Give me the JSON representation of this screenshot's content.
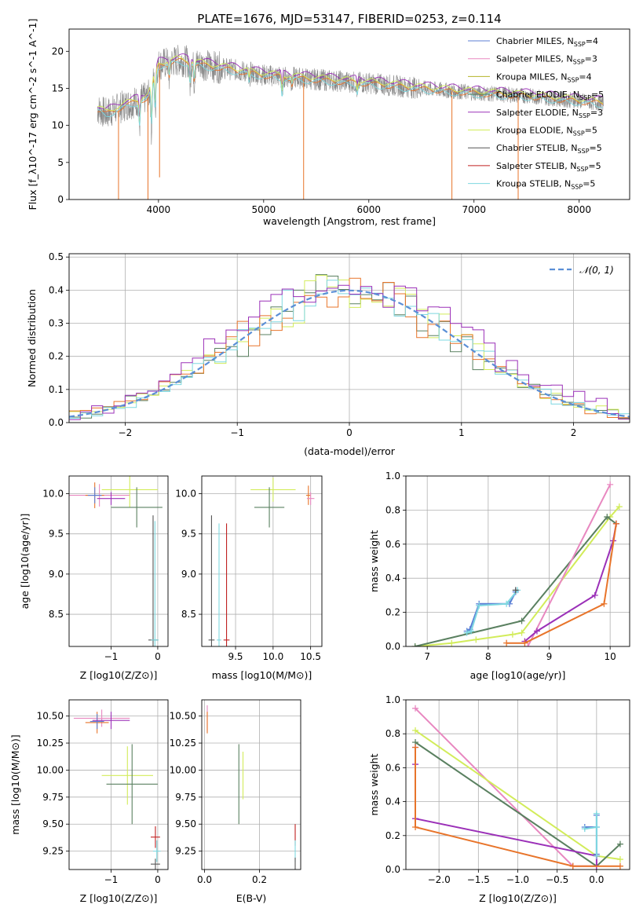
{
  "figure": {
    "suptitle": "PLATE=1676, MJD=53147, FIBERID=0253, z=0.114"
  },
  "colors": {
    "Chabrier MILES": "#5b7fd6",
    "Salpeter MILES": "#e888c0",
    "Kroupa MILES": "#b4b42a",
    "Chabrier ELODIE": "#5a8060",
    "Salpeter ELODIE": "#9b30b8",
    "Kroupa ELODIE": "#d2ec5a",
    "Chabrier STELIB": "#555555",
    "Salpeter STELIB": "#c02020",
    "Kroupa STELIB": "#7ed8e0",
    "data": "#888888",
    "orange": "#e8742a",
    "gauss": "#5b8fd6"
  },
  "chart_data": [
    {
      "id": "spectrum",
      "type": "line",
      "xlabel": "wavelength [Angstrom, rest frame]",
      "ylabel": "Flux [f_λ10^-17 erg cm^-2 s^-1 A^-1]",
      "xlim": [
        3150,
        8480
      ],
      "ylim": [
        0,
        23
      ],
      "xticks": [
        4000,
        5000,
        6000,
        7000,
        8000
      ],
      "yticks": [
        0,
        5,
        10,
        15,
        20
      ],
      "grid": false,
      "legend_position": "top-right",
      "continuum": {
        "x": [
          3420,
          3500,
          3700,
          3900,
          4000,
          4200,
          4500,
          4800,
          5000,
          5500,
          6000,
          6500,
          7000,
          7500,
          8000,
          8230
        ],
        "y": [
          12.2,
          11.6,
          12.8,
          13.8,
          18.2,
          18.8,
          18.0,
          17.3,
          16.8,
          16.2,
          15.7,
          15.0,
          14.4,
          14.0,
          13.3,
          13.0
        ]
      },
      "absorption_lines": [
        {
          "x": 3820,
          "depth": 3.5
        },
        {
          "x": 3934,
          "depth": 6
        },
        {
          "x": 3969,
          "depth": 5
        },
        {
          "x": 4102,
          "depth": 2
        },
        {
          "x": 4300,
          "depth": 3
        },
        {
          "x": 4340,
          "depth": 2.5
        },
        {
          "x": 4861,
          "depth": 1.5
        },
        {
          "x": 5175,
          "depth": 2.5
        },
        {
          "x": 5270,
          "depth": 1
        },
        {
          "x": 5890,
          "depth": 1.2
        }
      ],
      "spikes": [
        {
          "x": 3620,
          "to": 0
        },
        {
          "x": 3900,
          "to": 0
        },
        {
          "x": 4010,
          "to": 3
        },
        {
          "x": 5380,
          "to": 0
        },
        {
          "x": 6790,
          "to": 0
        },
        {
          "x": 7420,
          "to": 0
        }
      ],
      "legend": [
        {
          "label": "Chabrier MILES, N",
          "sub": "SSP",
          "suffix": "=4",
          "color_key": "Chabrier MILES"
        },
        {
          "label": "Salpeter MILES, N",
          "sub": "SSP",
          "suffix": "=3",
          "color_key": "Salpeter MILES"
        },
        {
          "label": "Kroupa MILES, N",
          "sub": "SSP",
          "suffix": "=4",
          "color_key": "Kroupa MILES"
        },
        {
          "label": "Chabrier ELODIE, N",
          "sub": "SSP",
          "suffix": "=5",
          "color_key": "Chabrier ELODIE"
        },
        {
          "label": "Salpeter ELODIE, N",
          "sub": "SSP",
          "suffix": "=3",
          "color_key": "Salpeter ELODIE"
        },
        {
          "label": "Kroupa ELODIE, N",
          "sub": "SSP",
          "suffix": "=5",
          "color_key": "Kroupa ELODIE"
        },
        {
          "label": "Chabrier STELIB, N",
          "sub": "SSP",
          "suffix": "=5",
          "color_key": "Chabrier STELIB"
        },
        {
          "label": "Salpeter STELIB, N",
          "sub": "SSP",
          "suffix": "=5",
          "color_key": "Salpeter STELIB"
        },
        {
          "label": "Kroupa STELIB, N",
          "sub": "SSP",
          "suffix": "=5",
          "color_key": "Kroupa STELIB"
        }
      ]
    },
    {
      "id": "residuals",
      "type": "line",
      "xlabel": "(data-model)/error",
      "ylabel": "Normed distribution",
      "xlim": [
        -2.5,
        2.5
      ],
      "ylim": [
        0,
        0.51
      ],
      "xticks": [
        -2,
        -1,
        0,
        1,
        2
      ],
      "yticks": [
        0.0,
        0.1,
        0.2,
        0.3,
        0.4,
        0.5
      ],
      "grid": true,
      "legend_position": "top-right",
      "legend_label": "𝒩(0, 1)",
      "bin_width": 0.1,
      "series": [
        {
          "color_key": "Chabrier ELODIE",
          "seed": 11
        },
        {
          "color_key": "Kroupa ELODIE",
          "seed": 23
        },
        {
          "color_key": "orange",
          "seed": 37
        },
        {
          "color_key": "Kroupa STELIB",
          "seed": 41
        },
        {
          "color_key": "Salpeter ELODIE",
          "seed": 53
        }
      ]
    },
    {
      "id": "age-vs-Z",
      "type": "scatter",
      "xlabel": "Z [log10(Z/Z⊙)]",
      "ylabel": "age  [log10(age/yr)]",
      "xlim": [
        -1.9,
        0.22
      ],
      "ylim": [
        8.1,
        10.22
      ],
      "xticks": [
        -1,
        0
      ],
      "yticks": [
        8.5,
        9.0,
        9.5,
        10.0
      ],
      "grid": true,
      "points": [
        {
          "x": -1.25,
          "y": 9.98,
          "xerr": 0.65,
          "yerr": 0.14,
          "color_key": "Salpeter MILES"
        },
        {
          "x": -1.35,
          "y": 9.98,
          "xerr": 0.2,
          "yerr": 0.16,
          "color_key": "orange"
        },
        {
          "x": -1.35,
          "y": 9.98,
          "xerr": 0.15,
          "yerr": 0.1,
          "color_key": "Chabrier MILES"
        },
        {
          "x": -1.0,
          "y": 9.94,
          "xerr": 0.3,
          "yerr": 0.08,
          "color_key": "Salpeter ELODIE"
        },
        {
          "x": -0.6,
          "y": 10.05,
          "xerr": 0.6,
          "yerr": 0.22,
          "color_key": "Kroupa ELODIE"
        },
        {
          "x": -0.45,
          "y": 9.83,
          "xerr": 0.55,
          "yerr": 0.25,
          "color_key": "Chabrier ELODIE"
        },
        {
          "x": -0.1,
          "y": 8.18,
          "xerr": 0.1,
          "yerr": 1.55,
          "color_key": "Chabrier STELIB"
        },
        {
          "x": -0.06,
          "y": 8.18,
          "xerr": 0.08,
          "yerr": 1.48,
          "color_key": "Kroupa STELIB"
        }
      ]
    },
    {
      "id": "age-vs-mass",
      "type": "scatter",
      "xlabel": "mass [log10(M/M⊙)]",
      "ylabel": "",
      "xlim": [
        9.05,
        10.65
      ],
      "ylim": [
        8.1,
        10.22
      ],
      "xticks": [
        9.5,
        10.0,
        10.5
      ],
      "yticks": [
        8.5,
        9.0,
        9.5,
        10.0
      ],
      "grid": true,
      "points": [
        {
          "x": 10.0,
          "y": 10.05,
          "xerr": 0.3,
          "yerr": 0.15,
          "color_key": "Kroupa ELODIE"
        },
        {
          "x": 9.95,
          "y": 9.83,
          "xerr": 0.2,
          "yerr": 0.25,
          "color_key": "Chabrier ELODIE"
        },
        {
          "x": 10.47,
          "y": 9.98,
          "xerr": 0.03,
          "yerr": 0.12,
          "color_key": "orange"
        },
        {
          "x": 10.5,
          "y": 9.94,
          "xerr": 0.05,
          "yerr": 0.08,
          "color_key": "Salpeter MILES"
        },
        {
          "x": 9.18,
          "y": 8.18,
          "xerr": 0.04,
          "yerr": 1.55,
          "color_key": "Chabrier STELIB"
        },
        {
          "x": 9.28,
          "y": 8.18,
          "xerr": 0.03,
          "yerr": 1.45,
          "color_key": "Kroupa STELIB"
        },
        {
          "x": 9.38,
          "y": 8.18,
          "xerr": 0.04,
          "yerr": 1.45,
          "color_key": "Salpeter STELIB"
        }
      ]
    },
    {
      "id": "weight-vs-age",
      "type": "line",
      "xlabel": "age  [log10(age/yr)]",
      "ylabel": "mass weight",
      "xlim": [
        6.65,
        10.32
      ],
      "ylim": [
        0,
        1.0
      ],
      "xticks": [
        7,
        8,
        9,
        10
      ],
      "yticks": [
        0.0,
        0.2,
        0.4,
        0.6,
        0.8,
        1.0
      ],
      "grid": true,
      "series": [
        {
          "color_key": "Kroupa ELODIE",
          "x": [
            6.8,
            7.4,
            7.8,
            8.4,
            8.55,
            10.0,
            10.15
          ],
          "y": [
            0.0,
            0.02,
            0.04,
            0.07,
            0.08,
            0.76,
            0.82
          ]
        },
        {
          "color_key": "Chabrier ELODIE",
          "x": [
            6.8,
            8.55,
            9.95,
            10.1
          ],
          "y": [
            0.0,
            0.15,
            0.76,
            0.72
          ]
        },
        {
          "color_key": "Salpeter MILES",
          "x": [
            8.65,
            10.0
          ],
          "y": [
            0.0,
            0.95
          ]
        },
        {
          "color_key": "Salpeter ELODIE",
          "x": [
            8.6,
            8.8,
            9.75,
            10.05,
            10.1
          ],
          "y": [
            0.03,
            0.09,
            0.3,
            0.62,
            0.72
          ]
        },
        {
          "color_key": "orange",
          "x": [
            8.3,
            8.6,
            9.9,
            10.1
          ],
          "y": [
            0.02,
            0.02,
            0.25,
            0.72
          ]
        },
        {
          "color_key": "Chabrier MILES",
          "x": [
            7.65,
            7.7,
            7.85,
            8.35,
            8.45
          ],
          "y": [
            0.09,
            0.1,
            0.25,
            0.25,
            0.32
          ]
        },
        {
          "color_key": "Kroupa STELIB",
          "x": [
            7.65,
            7.72,
            7.85,
            8.3,
            8.48
          ],
          "y": [
            0.08,
            0.09,
            0.24,
            0.25,
            0.33
          ]
        },
        {
          "color_key": "Chabrier STELIB",
          "x": [
            8.45
          ],
          "y": [
            0.33
          ]
        }
      ]
    },
    {
      "id": "mass-vs-Z",
      "type": "scatter",
      "xlabel": "Z [log10(Z/Z⊙)]",
      "ylabel": "mass [log10(M/M⊙)]",
      "xlim": [
        -1.9,
        0.22
      ],
      "ylim": [
        9.08,
        10.65
      ],
      "xticks": [
        -1,
        0
      ],
      "yticks": [
        9.25,
        9.5,
        9.75,
        10.0,
        10.25,
        10.5
      ],
      "grid": true,
      "points": [
        {
          "x": -1.2,
          "y": 10.48,
          "xerr": 0.6,
          "yerr": 0.08,
          "color_key": "Salpeter MILES"
        },
        {
          "x": -1.3,
          "y": 10.44,
          "xerr": 0.25,
          "yerr": 0.1,
          "color_key": "orange"
        },
        {
          "x": -1.3,
          "y": 10.45,
          "xerr": 0.15,
          "yerr": 0.07,
          "color_key": "Chabrier MILES"
        },
        {
          "x": -1.0,
          "y": 10.46,
          "xerr": 0.4,
          "yerr": 0.08,
          "color_key": "Salpeter ELODIE"
        },
        {
          "x": -0.65,
          "y": 9.95,
          "xerr": 0.55,
          "yerr": 0.27,
          "color_key": "Kroupa ELODIE"
        },
        {
          "x": -0.55,
          "y": 9.87,
          "xerr": 0.55,
          "yerr": 0.37,
          "color_key": "Chabrier ELODIE"
        },
        {
          "x": -0.05,
          "y": 9.38,
          "xerr": 0.1,
          "yerr": 0.1,
          "color_key": "Salpeter STELIB"
        },
        {
          "x": -0.02,
          "y": 9.25,
          "xerr": 0.08,
          "yerr": 0.1,
          "color_key": "Kroupa STELIB"
        },
        {
          "x": -0.05,
          "y": 9.13,
          "xerr": 0.1,
          "yerr": 0.05,
          "color_key": "Chabrier STELIB"
        }
      ]
    },
    {
      "id": "mass-vs-EBV",
      "type": "scatter",
      "xlabel": "E(B-V)",
      "ylabel": "",
      "xlim": [
        -0.01,
        0.35
      ],
      "ylim": [
        9.08,
        10.65
      ],
      "xticks": [
        0.0,
        0.2
      ],
      "yticks": [
        9.25,
        9.5,
        9.75,
        10.0,
        10.25,
        10.5
      ],
      "grid": true,
      "points": [
        {
          "x": 0.01,
          "y": 10.48,
          "xerr": 0.0,
          "yerr": 0.12,
          "color_key": "Salpeter MILES"
        },
        {
          "x": 0.01,
          "y": 10.44,
          "xerr": 0.0,
          "yerr": 0.1,
          "color_key": "orange"
        },
        {
          "x": 0.125,
          "y": 9.87,
          "xerr": 0.0,
          "yerr": 0.37,
          "color_key": "Chabrier ELODIE"
        },
        {
          "x": 0.14,
          "y": 9.95,
          "xerr": 0.0,
          "yerr": 0.22,
          "color_key": "Kroupa ELODIE"
        },
        {
          "x": 0.33,
          "y": 9.4,
          "xerr": 0.0,
          "yerr": 0.1,
          "color_key": "Salpeter STELIB"
        },
        {
          "x": 0.33,
          "y": 9.25,
          "xerr": 0.0,
          "yerr": 0.1,
          "color_key": "Kroupa STELIB"
        },
        {
          "x": 0.33,
          "y": 9.13,
          "xerr": 0.0,
          "yerr": 0.06,
          "color_key": "Chabrier STELIB"
        }
      ]
    },
    {
      "id": "weight-vs-Z",
      "type": "line",
      "xlabel": "Z [log10(Z/Z⊙)]",
      "ylabel": "mass weight",
      "xlim": [
        -2.42,
        0.42
      ],
      "ylim": [
        0,
        1.0
      ],
      "xticks": [
        -2.0,
        -1.5,
        -1.0,
        -0.5,
        0.0
      ],
      "yticks": [
        0.0,
        0.2,
        0.4,
        0.6,
        0.8,
        1.0
      ],
      "grid": true,
      "series": [
        {
          "color_key": "Salpeter MILES",
          "x": [
            -2.3,
            -0.3,
            0.0
          ],
          "y": [
            0.95,
            0.02,
            0.02
          ]
        },
        {
          "color_key": "Kroupa ELODIE",
          "x": [
            -2.3,
            0.0,
            0.3
          ],
          "y": [
            0.82,
            0.08,
            0.06
          ]
        },
        {
          "color_key": "Chabrier ELODIE",
          "x": [
            -2.3,
            0.0,
            0.3
          ],
          "y": [
            0.75,
            0.02,
            0.15
          ]
        },
        {
          "color_key": "Salpeter ELODIE",
          "x": [
            -2.3,
            -2.3,
            -2.3,
            0.0,
            0.0
          ],
          "y": [
            0.72,
            0.62,
            0.3,
            0.08,
            0.02
          ]
        },
        {
          "color_key": "orange",
          "x": [
            -2.3,
            -2.3,
            -0.3,
            0.3
          ],
          "y": [
            0.72,
            0.25,
            0.02,
            0.02
          ]
        },
        {
          "color_key": "Chabrier MILES",
          "x": [
            -0.15,
            0.0,
            0.0,
            0.0
          ],
          "y": [
            0.25,
            0.25,
            0.32,
            0.09
          ]
        },
        {
          "color_key": "Kroupa STELIB",
          "x": [
            -0.15,
            0.0,
            0.0,
            0.0
          ],
          "y": [
            0.24,
            0.25,
            0.33,
            0.08
          ]
        }
      ]
    }
  ]
}
